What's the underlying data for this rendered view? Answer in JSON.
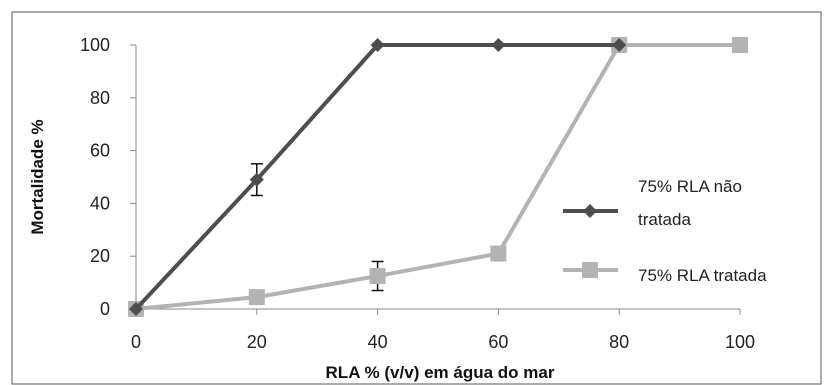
{
  "chart_data": {
    "type": "line",
    "title": "",
    "xlabel": "RLA % (v/v) em água do mar",
    "ylabel": "Mortalidade %",
    "x": [
      0,
      20,
      40,
      60,
      80,
      100
    ],
    "xlim": [
      0,
      100
    ],
    "ylim": [
      0,
      100
    ],
    "xticks": [
      "0",
      "20",
      "40",
      "60",
      "80",
      "100"
    ],
    "yticks": [
      "0",
      "20",
      "40",
      "60",
      "80",
      "100"
    ],
    "grid": false,
    "legend_position": "right",
    "series": [
      {
        "name_lines": [
          "75% RLA não",
          "tratada"
        ],
        "marker": "diamond",
        "color": "#4d4d4d",
        "x": [
          0,
          20,
          40,
          60,
          80
        ],
        "y": [
          0,
          49,
          100,
          100,
          100
        ],
        "error": [
          0,
          6,
          0,
          0,
          0
        ]
      },
      {
        "name_lines": [
          "75% RLA tratada"
        ],
        "marker": "square",
        "color": "#b3b3b3",
        "x": [
          0,
          20,
          40,
          60,
          80,
          100
        ],
        "y": [
          0,
          4.5,
          12.5,
          21,
          100,
          100
        ],
        "error": [
          0,
          1.5,
          5.5,
          0,
          0,
          0
        ]
      }
    ]
  }
}
